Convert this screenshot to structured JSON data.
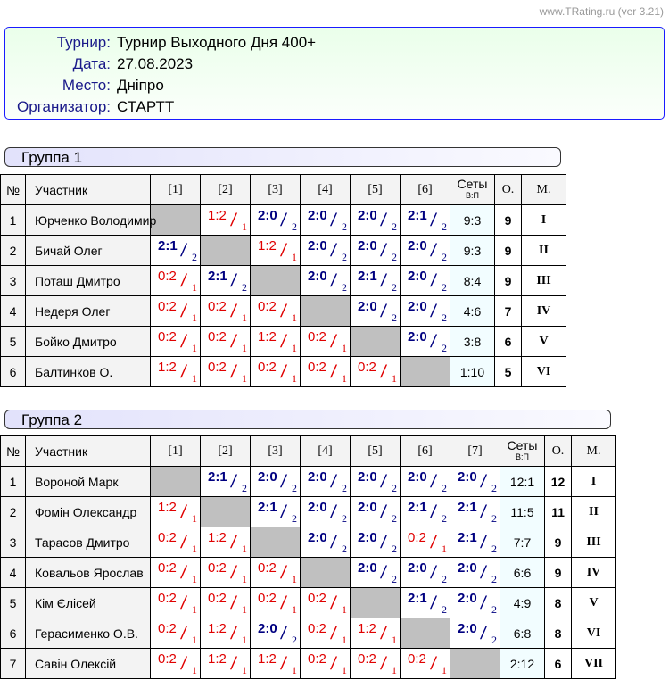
{
  "credit": "www.TRating.ru (ver 3.21)",
  "info": [
    {
      "label": "Турнир:",
      "value": "Турнир Выходного Дня 400+"
    },
    {
      "label": "Дата:",
      "value": "27.08.2023"
    },
    {
      "label": "Место:",
      "value": "Дніпро"
    },
    {
      "label": "Организатор:",
      "value": "СТАРТТ"
    }
  ],
  "headers": {
    "no": "№",
    "name": "Участник",
    "sets": "Сеты",
    "sets_sub": "В:П",
    "points": "О.",
    "place": "М."
  },
  "colors": {
    "win": "#000080",
    "loss": "#e00000",
    "self_cell": "#c0c0c0",
    "info_border": "#1a1aff"
  },
  "groups": [
    {
      "title": "Группа 1",
      "cols": [
        "[1]",
        "[2]",
        "[3]",
        "[4]",
        "[5]",
        "[6]"
      ],
      "rows": [
        {
          "no": "1",
          "name": "Юрченко Володимир",
          "results": [
            null,
            {
              "s": "1:2",
              "p": "1"
            },
            {
              "s": "2:0",
              "p": "2"
            },
            {
              "s": "2:0",
              "p": "2"
            },
            {
              "s": "2:0",
              "p": "2"
            },
            {
              "s": "2:1",
              "p": "2"
            }
          ],
          "sets": "9:3",
          "points": "9",
          "place": "I"
        },
        {
          "no": "2",
          "name": "Бичай Олег",
          "results": [
            {
              "s": "2:1",
              "p": "2"
            },
            null,
            {
              "s": "1:2",
              "p": "1"
            },
            {
              "s": "2:0",
              "p": "2"
            },
            {
              "s": "2:0",
              "p": "2"
            },
            {
              "s": "2:0",
              "p": "2"
            }
          ],
          "sets": "9:3",
          "points": "9",
          "place": "II"
        },
        {
          "no": "3",
          "name": "Поташ Дмитро",
          "results": [
            {
              "s": "0:2",
              "p": "1"
            },
            {
              "s": "2:1",
              "p": "2"
            },
            null,
            {
              "s": "2:0",
              "p": "2"
            },
            {
              "s": "2:1",
              "p": "2"
            },
            {
              "s": "2:0",
              "p": "2"
            }
          ],
          "sets": "8:4",
          "points": "9",
          "place": "III"
        },
        {
          "no": "4",
          "name": "Недеря Олег",
          "results": [
            {
              "s": "0:2",
              "p": "1"
            },
            {
              "s": "0:2",
              "p": "1"
            },
            {
              "s": "0:2",
              "p": "1"
            },
            null,
            {
              "s": "2:0",
              "p": "2"
            },
            {
              "s": "2:0",
              "p": "2"
            }
          ],
          "sets": "4:6",
          "points": "7",
          "place": "IV"
        },
        {
          "no": "5",
          "name": "Бойко Дмитро",
          "results": [
            {
              "s": "0:2",
              "p": "1"
            },
            {
              "s": "0:2",
              "p": "1"
            },
            {
              "s": "1:2",
              "p": "1"
            },
            {
              "s": "0:2",
              "p": "1"
            },
            null,
            {
              "s": "2:0",
              "p": "2"
            }
          ],
          "sets": "3:8",
          "points": "6",
          "place": "V"
        },
        {
          "no": "6",
          "name": "Балтинков О.",
          "results": [
            {
              "s": "1:2",
              "p": "1"
            },
            {
              "s": "0:2",
              "p": "1"
            },
            {
              "s": "0:2",
              "p": "1"
            },
            {
              "s": "0:2",
              "p": "1"
            },
            {
              "s": "0:2",
              "p": "1"
            },
            null
          ],
          "sets": "1:10",
          "points": "5",
          "place": "VI"
        }
      ]
    },
    {
      "title": "Группа 2",
      "cols": [
        "[1]",
        "[2]",
        "[3]",
        "[4]",
        "[5]",
        "[6]",
        "[7]"
      ],
      "rows": [
        {
          "no": "1",
          "name": "Вороной Марк",
          "results": [
            null,
            {
              "s": "2:1",
              "p": "2"
            },
            {
              "s": "2:0",
              "p": "2"
            },
            {
              "s": "2:0",
              "p": "2"
            },
            {
              "s": "2:0",
              "p": "2"
            },
            {
              "s": "2:0",
              "p": "2"
            },
            {
              "s": "2:0",
              "p": "2"
            }
          ],
          "sets": "12:1",
          "points": "12",
          "place": "I"
        },
        {
          "no": "2",
          "name": "Фомін Олександр",
          "results": [
            {
              "s": "1:2",
              "p": "1"
            },
            null,
            {
              "s": "2:1",
              "p": "2"
            },
            {
              "s": "2:0",
              "p": "2"
            },
            {
              "s": "2:0",
              "p": "2"
            },
            {
              "s": "2:1",
              "p": "2"
            },
            {
              "s": "2:1",
              "p": "2"
            }
          ],
          "sets": "11:5",
          "points": "11",
          "place": "II"
        },
        {
          "no": "3",
          "name": "Тарасов Дмитро",
          "results": [
            {
              "s": "0:2",
              "p": "1"
            },
            {
              "s": "1:2",
              "p": "1"
            },
            null,
            {
              "s": "2:0",
              "p": "2"
            },
            {
              "s": "2:0",
              "p": "2"
            },
            {
              "s": "0:2",
              "p": "1"
            },
            {
              "s": "2:1",
              "p": "2"
            }
          ],
          "sets": "7:7",
          "points": "9",
          "place": "III"
        },
        {
          "no": "4",
          "name": "Ковальов Ярослав",
          "results": [
            {
              "s": "0:2",
              "p": "1"
            },
            {
              "s": "0:2",
              "p": "1"
            },
            {
              "s": "0:2",
              "p": "1"
            },
            null,
            {
              "s": "2:0",
              "p": "2"
            },
            {
              "s": "2:0",
              "p": "2"
            },
            {
              "s": "2:0",
              "p": "2"
            }
          ],
          "sets": "6:6",
          "points": "9",
          "place": "IV"
        },
        {
          "no": "5",
          "name": "Кім Єлісей",
          "results": [
            {
              "s": "0:2",
              "p": "1"
            },
            {
              "s": "0:2",
              "p": "1"
            },
            {
              "s": "0:2",
              "p": "1"
            },
            {
              "s": "0:2",
              "p": "1"
            },
            null,
            {
              "s": "2:1",
              "p": "2"
            },
            {
              "s": "2:0",
              "p": "2"
            }
          ],
          "sets": "4:9",
          "points": "8",
          "place": "V"
        },
        {
          "no": "6",
          "name": "Герасименко О.В.",
          "results": [
            {
              "s": "0:2",
              "p": "1"
            },
            {
              "s": "1:2",
              "p": "1"
            },
            {
              "s": "2:0",
              "p": "2"
            },
            {
              "s": "0:2",
              "p": "1"
            },
            {
              "s": "1:2",
              "p": "1"
            },
            null,
            {
              "s": "2:0",
              "p": "2"
            }
          ],
          "sets": "6:8",
          "points": "8",
          "place": "VI"
        },
        {
          "no": "7",
          "name": "Савін Олексій",
          "results": [
            {
              "s": "0:2",
              "p": "1"
            },
            {
              "s": "1:2",
              "p": "1"
            },
            {
              "s": "1:2",
              "p": "1"
            },
            {
              "s": "0:2",
              "p": "1"
            },
            {
              "s": "0:2",
              "p": "1"
            },
            {
              "s": "0:2",
              "p": "1"
            },
            null
          ],
          "sets": "2:12",
          "points": "6",
          "place": "VII"
        }
      ]
    }
  ]
}
